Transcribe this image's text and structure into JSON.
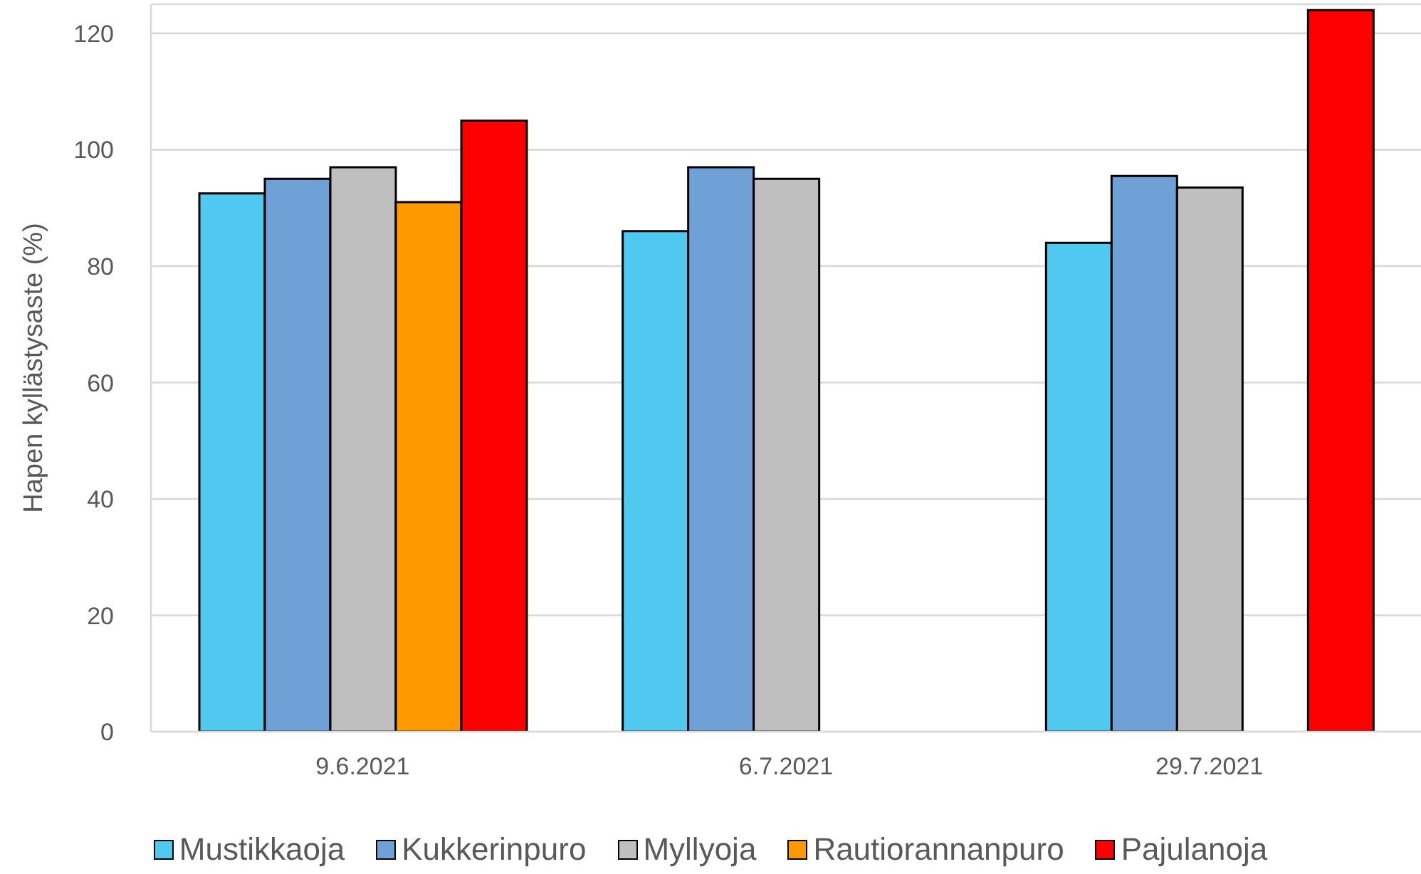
{
  "chart_data": {
    "type": "bar",
    "ylabel": "Hapen kyllästysaste (%)",
    "categories": [
      "9.6.2021",
      "6.7.2021",
      "29.7.2021"
    ],
    "series": [
      {
        "name": "Mustikkaoja",
        "color": "#4fc9f0",
        "values": [
          92.5,
          86,
          84
        ]
      },
      {
        "name": "Kukkerinpuro",
        "color": "#6fa1d6",
        "values": [
          95,
          97,
          95.5
        ]
      },
      {
        "name": "Myllyoja",
        "color": "#bfbfbf",
        "values": [
          97,
          95,
          93.5
        ]
      },
      {
        "name": "Rautiorannanpuro",
        "color": "#ff9900",
        "values": [
          91,
          null,
          null
        ]
      },
      {
        "name": "Pajulanoja",
        "color": "#ff0000",
        "values": [
          105,
          null,
          124
        ]
      }
    ],
    "ylim": [
      0,
      125
    ],
    "yticks": [
      0,
      20,
      40,
      60,
      80,
      100,
      120
    ],
    "grid": "y",
    "legend": "bottom"
  }
}
